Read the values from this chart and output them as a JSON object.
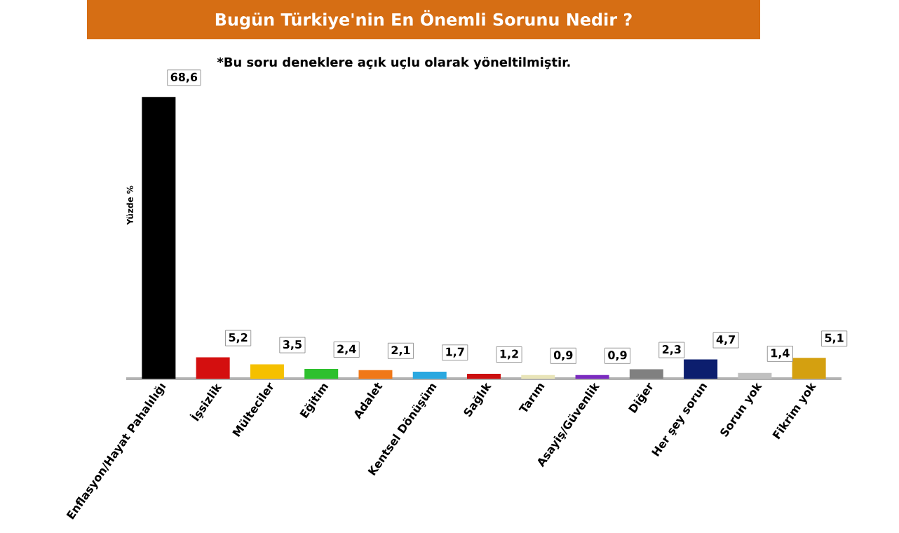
{
  "chart_data": {
    "type": "bar",
    "title": "Bugün Türkiye'nin En Önemli Sorunu Nedir ?",
    "ylabel": "Yüzde %",
    "annotations": [
      "*Bu soru deneklere açık uçlu olarak yöneltilmiştir."
    ],
    "categories": [
      "Enflasyon/Hayat Pahalılığı",
      "İşsizlik",
      "Mülteciler",
      "Eğitim",
      "Adalet",
      "Kentsel Dönüşüm",
      "Sağlık",
      "Tarım",
      "Asayiş/Güvenlik",
      "Diğer",
      "Her şey sorun",
      "Sorun yok",
      "Fikrim yok"
    ],
    "values": [
      68.6,
      5.2,
      3.5,
      2.4,
      2.1,
      1.7,
      1.2,
      0.9,
      0.9,
      2.3,
      4.7,
      1.4,
      5.1
    ],
    "value_labels": [
      "68,6",
      "5,2",
      "3,5",
      "2,4",
      "2,1",
      "1,7",
      "1,2",
      "0,9",
      "0,9",
      "2,3",
      "4,7",
      "1,4",
      "5,1"
    ],
    "colors": [
      "#000000",
      "#d40f0f",
      "#f5c000",
      "#2ec02e",
      "#f07818",
      "#2aa8e0",
      "#cc1010",
      "#e8e4b8",
      "#7a2bbf",
      "#808080",
      "#0c1e6e",
      "#c0c0c0",
      "#d4a010"
    ]
  }
}
